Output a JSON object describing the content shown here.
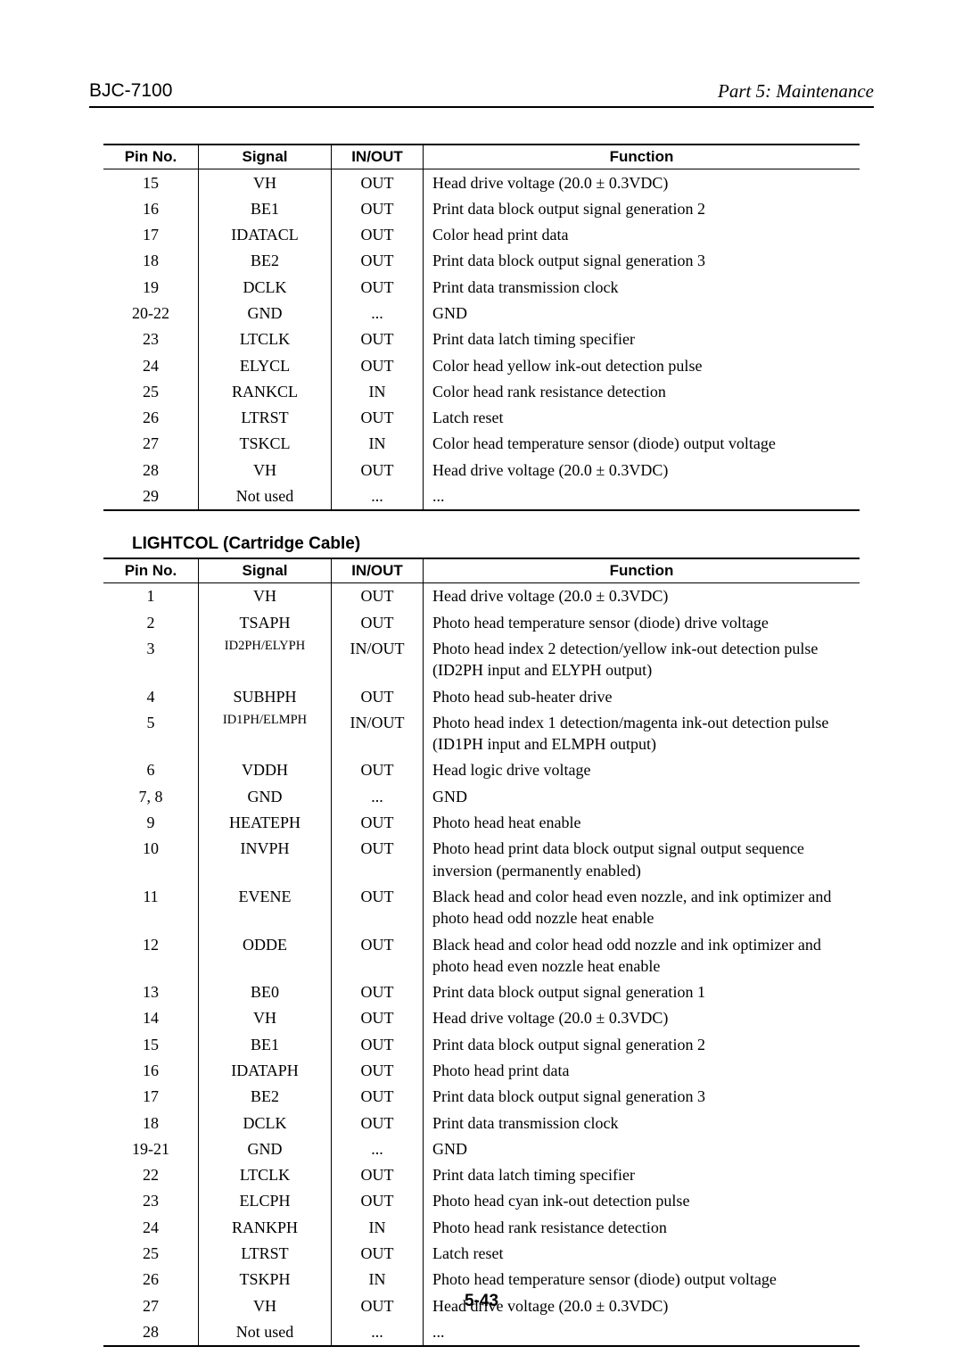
{
  "header": {
    "left": "BJC-7100",
    "right": "Part 5: Maintenance"
  },
  "table1": {
    "columns": [
      "Pin No.",
      "Signal",
      "IN/OUT",
      "Function"
    ],
    "rows": [
      {
        "pin": "15",
        "signal": "VH",
        "inout": "OUT",
        "func": "Head drive voltage (20.0 ± 0.3VDC)"
      },
      {
        "pin": "16",
        "signal": "BE1",
        "inout": "OUT",
        "func": "Print data block output signal generation 2"
      },
      {
        "pin": "17",
        "signal": "IDATACL",
        "inout": "OUT",
        "func": "Color head print data"
      },
      {
        "pin": "18",
        "signal": "BE2",
        "inout": "OUT",
        "func": "Print data block output signal generation 3"
      },
      {
        "pin": "19",
        "signal": "DCLK",
        "inout": "OUT",
        "func": "Print data transmission clock"
      },
      {
        "pin": "20-22",
        "signal": "GND",
        "inout": "...",
        "func": "GND"
      },
      {
        "pin": "23",
        "signal": "LTCLK",
        "inout": "OUT",
        "func": "Print data latch timing specifier"
      },
      {
        "pin": "24",
        "signal": "ELYCL",
        "inout": "OUT",
        "func": "Color head yellow ink-out detection pulse"
      },
      {
        "pin": "25",
        "signal": "RANKCL",
        "inout": "IN",
        "func": "Color head rank resistance detection"
      },
      {
        "pin": "26",
        "signal": "LTRST",
        "inout": "OUT",
        "func": "Latch reset"
      },
      {
        "pin": "27",
        "signal": "TSKCL",
        "inout": "IN",
        "func": "Color head temperature sensor (diode) output voltage"
      },
      {
        "pin": "28",
        "signal": "VH",
        "inout": "OUT",
        "func": "Head drive voltage (20.0 ± 0.3VDC)"
      },
      {
        "pin": "29",
        "signal": "Not used",
        "inout": "...",
        "func": "..."
      }
    ]
  },
  "table2": {
    "heading": "LIGHTCOL (Cartridge Cable)",
    "columns": [
      "Pin No.",
      "Signal",
      "IN/OUT",
      "Function"
    ],
    "rows": [
      {
        "pin": "1",
        "signal": "VH",
        "inout": "OUT",
        "func": "Head drive voltage (20.0 ± 0.3VDC)"
      },
      {
        "pin": "2",
        "signal": "TSAPH",
        "inout": "OUT",
        "func": "Photo head temperature sensor (diode) drive voltage"
      },
      {
        "pin": "3",
        "signal": "ID2PH/ELYPH",
        "signal_small": true,
        "inout": "IN/OUT",
        "func": "Photo head index 2 detection/yellow ink-out detection pulse (ID2PH input and ELYPH output)"
      },
      {
        "pin": "4",
        "signal": "SUBHPH",
        "inout": "OUT",
        "func": "Photo head sub-heater drive"
      },
      {
        "pin": "5",
        "signal": "ID1PH/ELMPH",
        "signal_small": true,
        "inout": "IN/OUT",
        "func": "Photo head index 1 detection/magenta ink-out detection pulse (ID1PH input and ELMPH output)"
      },
      {
        "pin": "6",
        "signal": "VDDH",
        "inout": "OUT",
        "func": "Head logic drive voltage"
      },
      {
        "pin": "7, 8",
        "signal": "GND",
        "inout": "...",
        "func": "GND"
      },
      {
        "pin": "9",
        "signal": "HEATEPH",
        "inout": "OUT",
        "func": "Photo head heat enable"
      },
      {
        "pin": "10",
        "signal": "INVPH",
        "inout": "OUT",
        "func": "Photo head print data block output signal output sequence inversion (permanently enabled)"
      },
      {
        "pin": "11",
        "signal": "EVENE",
        "inout": "OUT",
        "func": "Black head and color head even nozzle, and ink optimizer and photo head odd nozzle heat enable"
      },
      {
        "pin": "12",
        "signal": "ODDE",
        "inout": "OUT",
        "func": "Black head and color head odd nozzle and ink optimizer and photo head even nozzle heat enable"
      },
      {
        "pin": "13",
        "signal": "BE0",
        "inout": "OUT",
        "func": "Print data block output signal generation 1"
      },
      {
        "pin": "14",
        "signal": "VH",
        "inout": "OUT",
        "func": "Head drive voltage (20.0 ± 0.3VDC)"
      },
      {
        "pin": "15",
        "signal": "BE1",
        "inout": "OUT",
        "func": "Print data block output signal generation 2"
      },
      {
        "pin": "16",
        "signal": "IDATAPH",
        "inout": "OUT",
        "func": "Photo head print data"
      },
      {
        "pin": "17",
        "signal": "BE2",
        "inout": "OUT",
        "func": "Print data block output signal generation 3"
      },
      {
        "pin": "18",
        "signal": "DCLK",
        "inout": "OUT",
        "func": "Print data transmission clock"
      },
      {
        "pin": "19-21",
        "signal": "GND",
        "inout": "...",
        "func": "GND"
      },
      {
        "pin": "22",
        "signal": "LTCLK",
        "inout": "OUT",
        "func": "Print data latch timing specifier"
      },
      {
        "pin": "23",
        "signal": "ELCPH",
        "inout": "OUT",
        "func": "Photo head cyan ink-out detection pulse"
      },
      {
        "pin": "24",
        "signal": "RANKPH",
        "inout": "IN",
        "func": "Photo head rank resistance detection"
      },
      {
        "pin": "25",
        "signal": "LTRST",
        "inout": "OUT",
        "func": "Latch reset"
      },
      {
        "pin": "26",
        "signal": "TSKPH",
        "inout": "IN",
        "func": "Photo head temperature sensor (diode) output voltage"
      },
      {
        "pin": "27",
        "signal": "VH",
        "inout": "OUT",
        "func": "Head drive voltage (20.0 ± 0.3VDC)"
      },
      {
        "pin": "28",
        "signal": "Not used",
        "inout": "...",
        "func": "..."
      }
    ]
  },
  "page_number": "5-43"
}
